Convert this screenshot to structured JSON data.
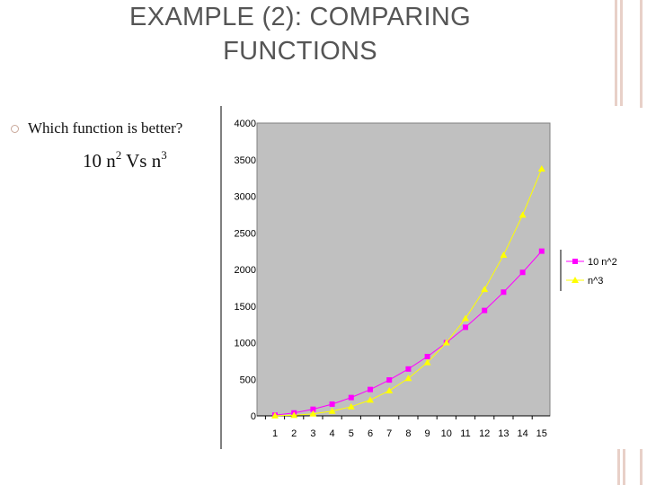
{
  "slide": {
    "title_line1": "EXAMPLE (2): COMPARING",
    "title_line2": "FUNCTIONS",
    "bullet_text": "Which function is better?",
    "formula": {
      "coef": "10 n",
      "exp1": "2",
      "vs": " Vs n",
      "exp2": "3"
    }
  },
  "colors": {
    "plot_bg": "#c0c0c0",
    "series_10n2": "#ff00ff",
    "series_n3": "#ffff00",
    "decoration": "#e8d0c8",
    "bullet": "#c9a89a"
  },
  "chart_data": {
    "type": "line",
    "x": [
      1,
      2,
      3,
      4,
      5,
      6,
      7,
      8,
      9,
      10,
      11,
      12,
      13,
      14,
      15
    ],
    "categories": [
      "1",
      "2",
      "3",
      "4",
      "5",
      "6",
      "7",
      "8",
      "9",
      "10",
      "11",
      "12",
      "13",
      "14",
      "15"
    ],
    "ylim": [
      0,
      4000
    ],
    "yticks": [
      "0",
      "500",
      "1000",
      "1500",
      "2000",
      "2500",
      "3000",
      "3500",
      "4000"
    ],
    "grid": false,
    "legend_position": "right",
    "series": [
      {
        "name": "10 n^2",
        "marker": "square",
        "color": "#ff00ff",
        "values": [
          10,
          40,
          90,
          160,
          250,
          360,
          490,
          640,
          810,
          1000,
          1210,
          1440,
          1690,
          1960,
          2250
        ]
      },
      {
        "name": "n^3",
        "marker": "triangle",
        "color": "#ffff00",
        "values": [
          1,
          8,
          27,
          64,
          125,
          216,
          343,
          512,
          729,
          1000,
          1331,
          1728,
          2197,
          2744,
          3375
        ]
      }
    ]
  }
}
